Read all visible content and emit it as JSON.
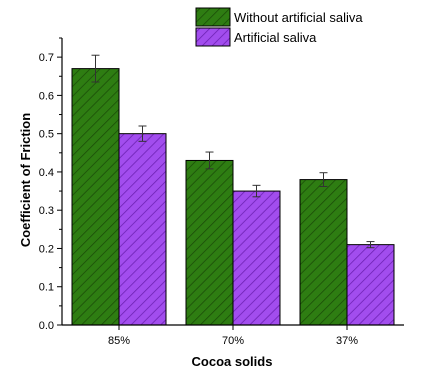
{
  "chart_data": {
    "type": "bar",
    "categories": [
      "85%",
      "70%",
      "37%"
    ],
    "series": [
      {
        "name": "Without artificial saliva",
        "values": [
          0.67,
          0.43,
          0.38
        ],
        "errors": [
          0.035,
          0.022,
          0.018
        ],
        "color": "#2e7d12",
        "hatch": "dark green diagonal"
      },
      {
        "name": "Artificial saliva",
        "values": [
          0.5,
          0.35,
          0.21
        ],
        "errors": [
          0.02,
          0.015,
          0.008
        ],
        "color": "#a24dee",
        "hatch": "purple diagonal"
      }
    ],
    "title": "",
    "xlabel": "Cocoa solids",
    "ylabel": "Coefficient of Friction",
    "ylim": [
      0.0,
      0.75
    ],
    "yticks": [
      "0.0",
      "0.1",
      "0.2",
      "0.3",
      "0.4",
      "0.5",
      "0.6",
      "0.7"
    ],
    "legend_position": "top-right",
    "grid": false
  }
}
